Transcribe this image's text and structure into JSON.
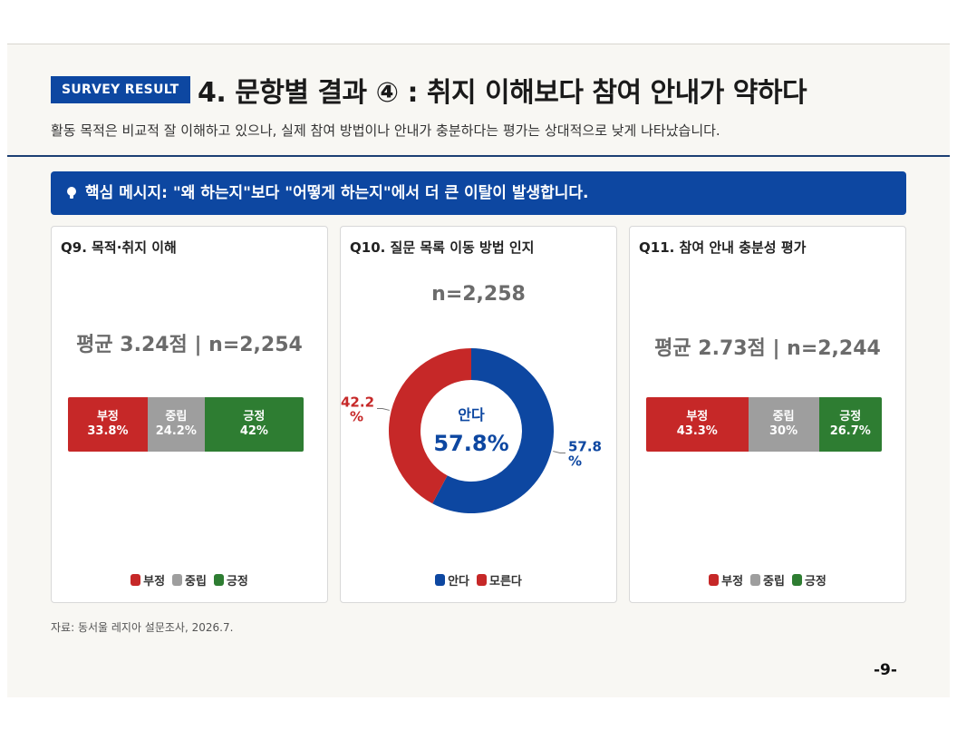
{
  "header": {
    "badge": "SURVEY RESULT",
    "title": "4. 문항별 결과 ④ : 취지 이해보다 참여 안내가 약하다",
    "subtitle": "활동 목적은 비교적 잘 이해하고 있으나, 실제 참여 방법이나 안내가 충분하다는 평가는 상대적으로 낮게 나타났습니다."
  },
  "banner": {
    "icon": "lightbulb-icon",
    "text": "핵심 메시지: \"왜 하는지\"보다 \"어떻게 하는지\"에서 더 큰 이탈이 발생합니다."
  },
  "colors": {
    "brand": "#0d47a1",
    "negative": "#c62828",
    "neutral": "#9e9e9e",
    "positive": "#2e7d32"
  },
  "chart_data": [
    {
      "type": "bar",
      "stacked": true,
      "orientation": "horizontal",
      "title": "Q9. 목적·취지 이해",
      "stat": "평균 3.24점 | n=2,254",
      "mean": 3.24,
      "n": 2254,
      "series": [
        {
          "name": "부정",
          "value": 33.8,
          "label": "33.8%",
          "color": "#c62828"
        },
        {
          "name": "중립",
          "value": 24.2,
          "label": "24.2%",
          "color": "#9e9e9e"
        },
        {
          "name": "긍정",
          "value": 42,
          "label": "42%",
          "color": "#2e7d32"
        }
      ],
      "legend": [
        "부정",
        "중립",
        "긍정"
      ],
      "legend_position": "bottom"
    },
    {
      "type": "pie",
      "donut": true,
      "title": "Q10. 질문 목록 이동 방법 인지",
      "stat": "n=2,258",
      "n": 2258,
      "center_label": "안다",
      "center_value": "57.8%",
      "slices": [
        {
          "name": "안다",
          "value": 57.8,
          "label_line1": "57.8",
          "label_line2": "%",
          "color": "#0d47a1"
        },
        {
          "name": "모른다",
          "value": 42.2,
          "label_line1": "42.2",
          "label_line2": "%",
          "color": "#c62828"
        }
      ],
      "legend": [
        "안다",
        "모른다"
      ],
      "legend_position": "bottom"
    },
    {
      "type": "bar",
      "stacked": true,
      "orientation": "horizontal",
      "title": "Q11. 참여 안내 충분성 평가",
      "stat": "평균 2.73점 | n=2,244",
      "mean": 2.73,
      "n": 2244,
      "series": [
        {
          "name": "부정",
          "value": 43.3,
          "label": "43.3%",
          "color": "#c62828"
        },
        {
          "name": "중립",
          "value": 30,
          "label": "30%",
          "color": "#9e9e9e"
        },
        {
          "name": "긍정",
          "value": 26.7,
          "label": "26.7%",
          "color": "#2e7d32"
        }
      ],
      "legend": [
        "부정",
        "중립",
        "긍정"
      ],
      "legend_position": "bottom"
    }
  ],
  "footer": {
    "source": "자료: 동서울 레지아 설문조사, 2026.7.",
    "page": "-9-"
  }
}
